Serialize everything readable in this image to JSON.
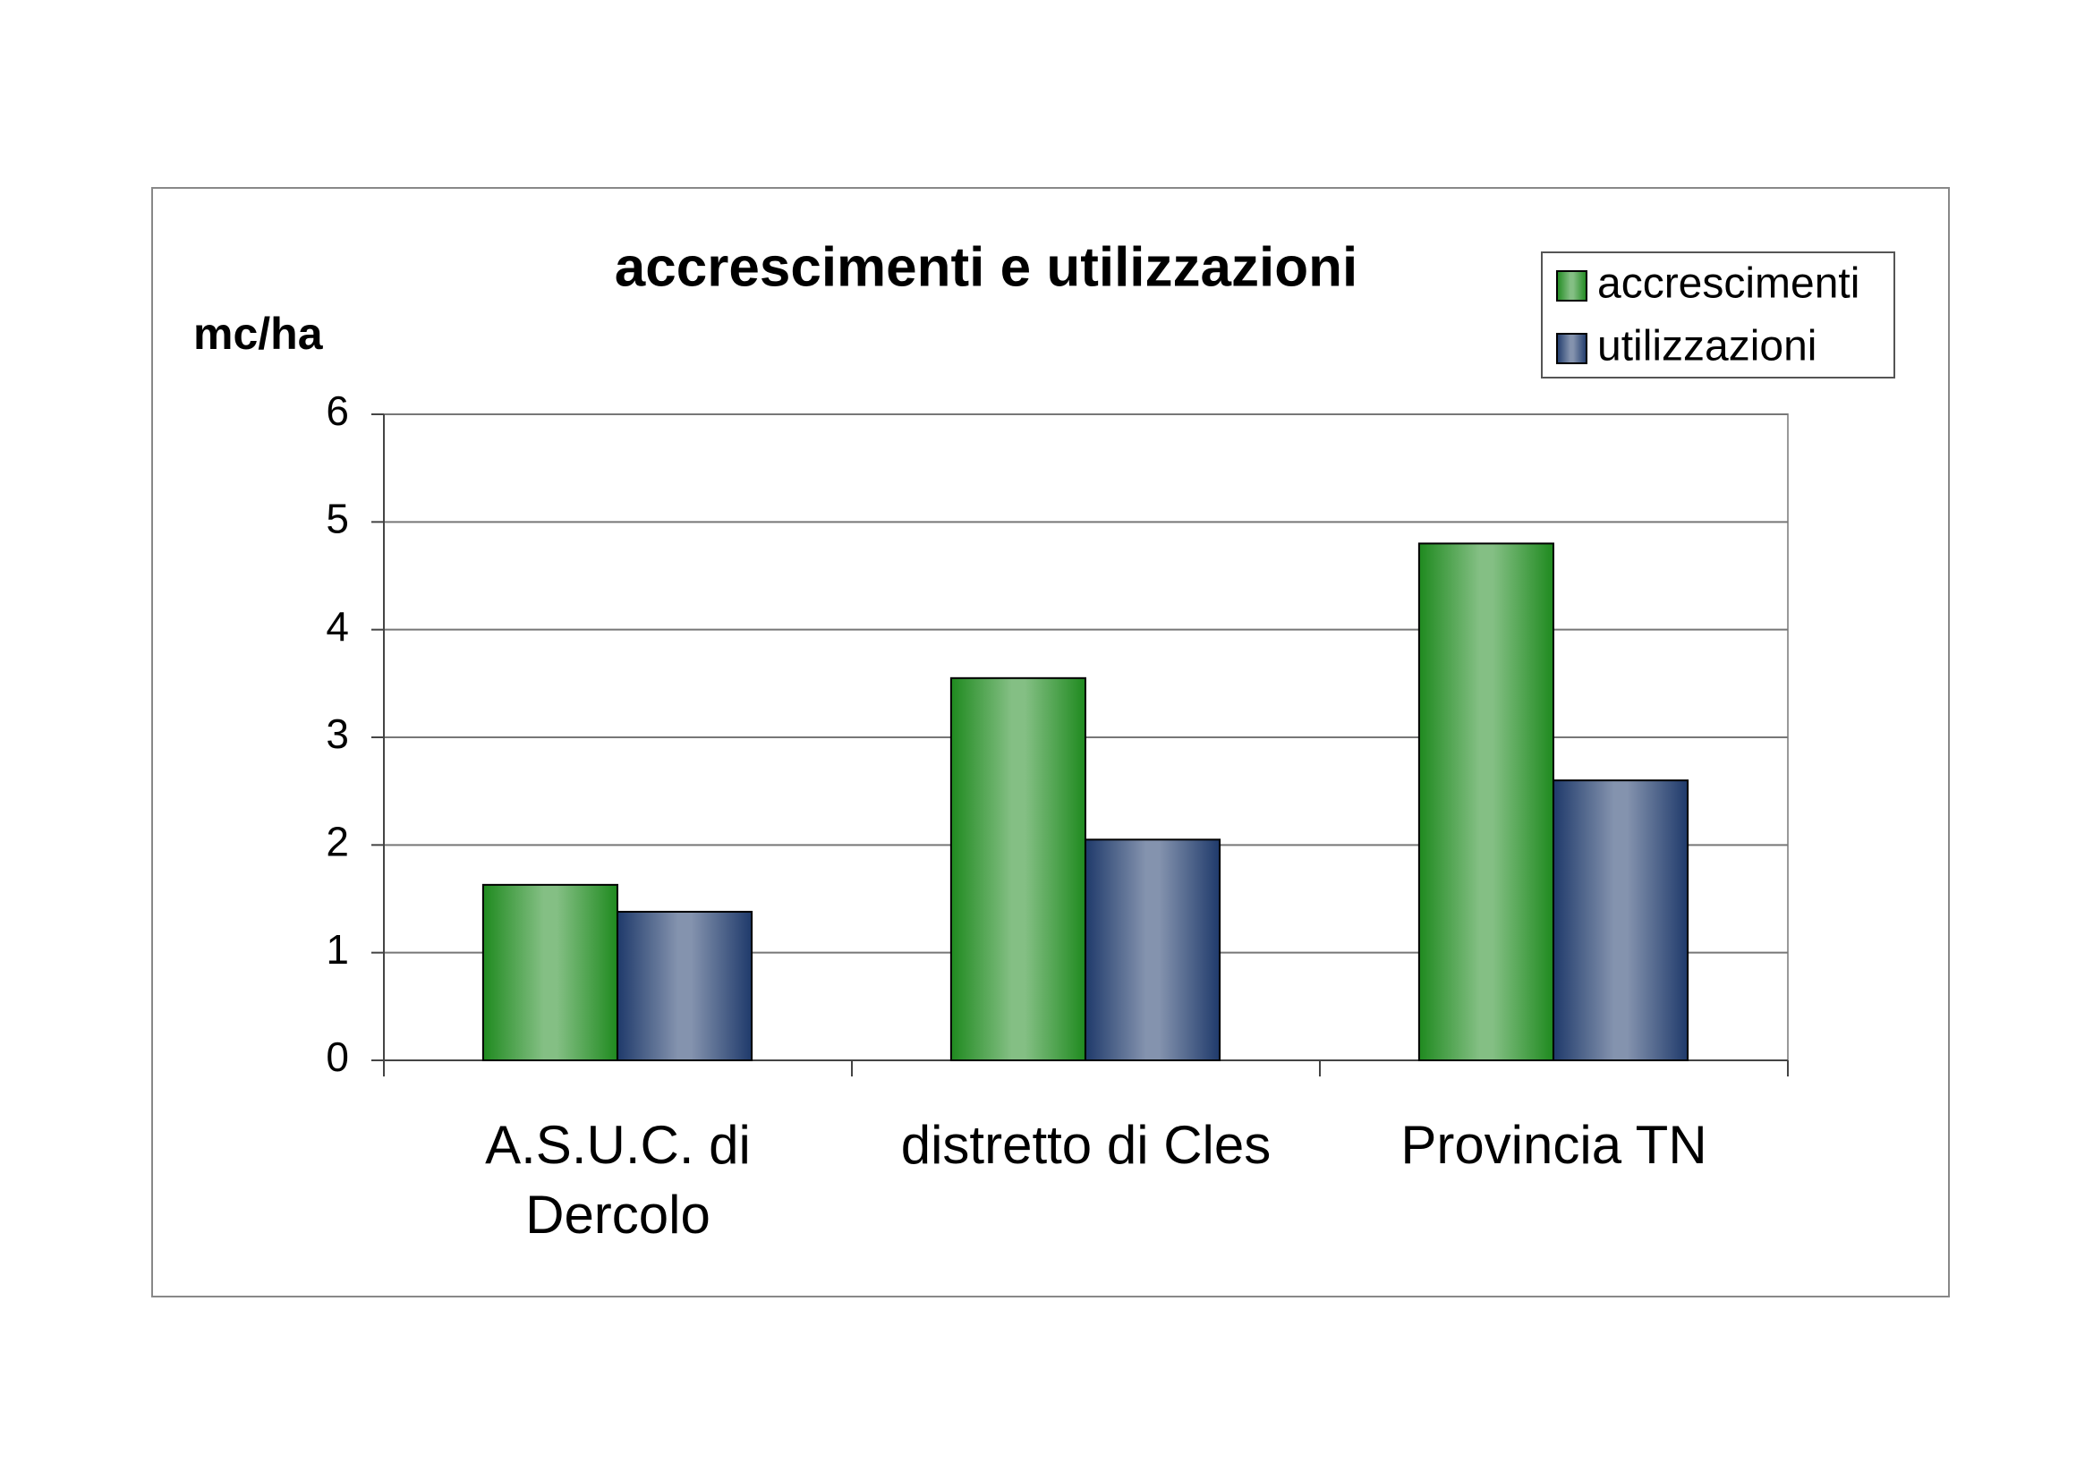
{
  "chart_data": {
    "type": "bar",
    "title": "accrescimenti e utilizzazioni",
    "y_label": "mc/ha",
    "categories": [
      "A.S.U.C. di Dercolo",
      "distretto di Cles",
      "Provincia TN"
    ],
    "series": [
      {
        "name": "accrescimenti",
        "color": "#1f8a1f",
        "values": [
          1.63,
          3.55,
          4.8
        ]
      },
      {
        "name": "utilizzazioni",
        "color": "#1f3a6b",
        "values": [
          1.38,
          2.05,
          2.6
        ]
      }
    ],
    "ylim": [
      0,
      6
    ],
    "yticks": [
      0,
      1,
      2,
      3,
      4,
      5,
      6
    ],
    "grid": true,
    "legend": "top-right"
  }
}
